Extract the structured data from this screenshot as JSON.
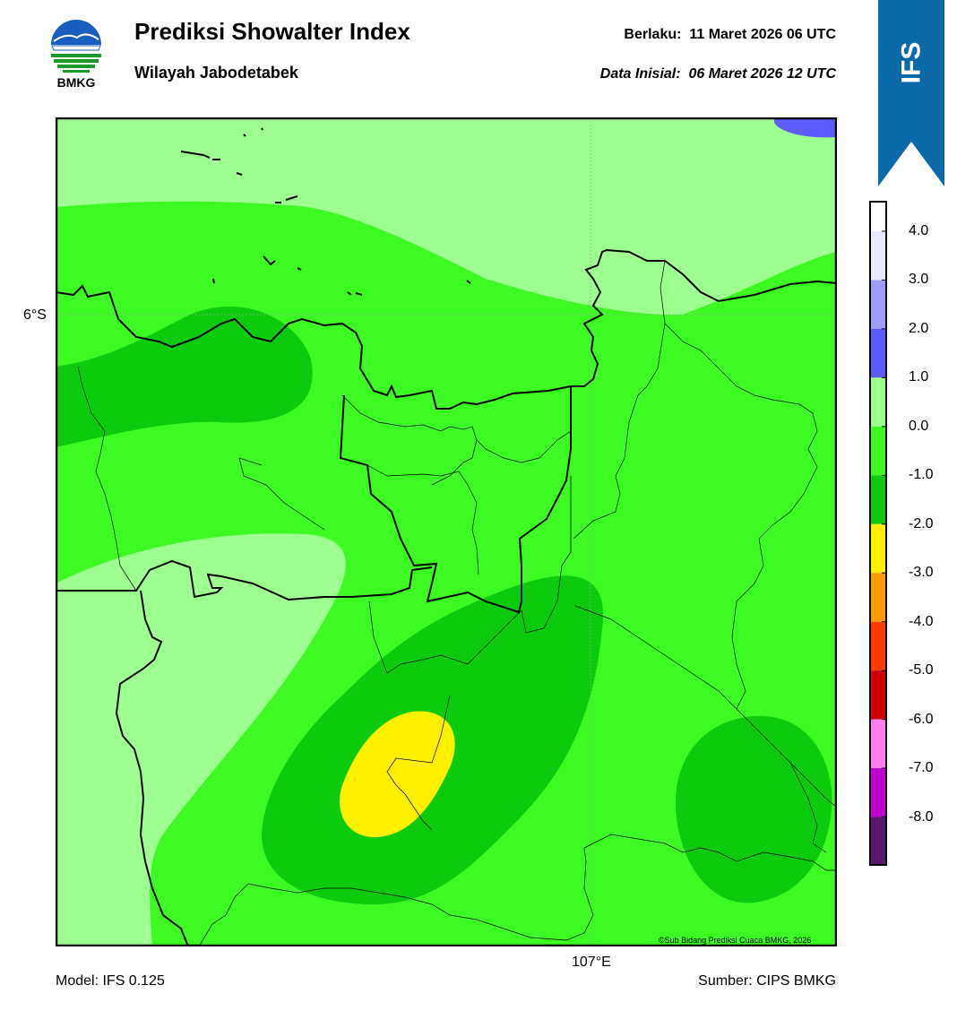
{
  "header": {
    "logo_text": "BMKG",
    "title": "Prediksi Showalter Index",
    "subtitle": "Wilayah Jabodetabek",
    "valid_label": "Berlaku:",
    "valid_value": "11 Maret 2026 06 UTC",
    "init_label": "Data Inisial:",
    "init_value": "06 Maret 2026 12 UTC",
    "ribbon_text": "IFS"
  },
  "map": {
    "lat_label": "6°S",
    "lon_label": "107°E",
    "copyright": "©Sub Bidang Prediksi Cuaca BMKG, 2026"
  },
  "footer": {
    "model": "Model: IFS 0.125",
    "source": "Sumber: CIPS BMKG"
  },
  "legend": {
    "ticks": [
      "4.0",
      "3.0",
      "2.0",
      "1.0",
      "0.0",
      "-1.0",
      "-2.0",
      "-3.0",
      "-4.0",
      "-5.0",
      "-6.0",
      "-7.0",
      "-8.0"
    ],
    "colors_top_to_bottom": [
      "#ffffff",
      "#e8e8ff",
      "#a09bff",
      "#5c5cff",
      "#9dff8f",
      "#3dfb22",
      "#0ccb0c",
      "#fff000",
      "#ff9a00",
      "#ff3c00",
      "#cc0000",
      "#ff7ff0",
      "#c000d0",
      "#5a1a6a"
    ]
  }
}
